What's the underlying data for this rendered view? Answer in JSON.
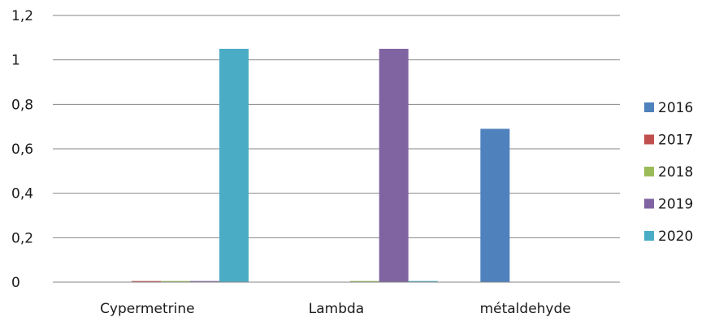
{
  "chart_data": {
    "type": "bar",
    "title": "",
    "xlabel": "",
    "ylabel": "",
    "categories": [
      "Cypermetrine",
      "Lambda",
      "métaldehyde"
    ],
    "series": [
      {
        "name": "2016",
        "color": "#4F81BD",
        "values": [
          0,
          0,
          0.69
        ]
      },
      {
        "name": "2017",
        "color": "#C0504D",
        "values": [
          0.005,
          0,
          0
        ]
      },
      {
        "name": "2018",
        "color": "#9BBB59",
        "values": [
          0.005,
          0.005,
          0
        ]
      },
      {
        "name": "2019",
        "color": "#8064A2",
        "values": [
          0.005,
          1.05,
          0
        ]
      },
      {
        "name": "2020",
        "color": "#4BACC6",
        "values": [
          1.05,
          0.005,
          0
        ]
      }
    ],
    "ylim": [
      0,
      1.2
    ],
    "yticks": [
      0,
      0.2,
      0.4,
      0.6,
      0.8,
      1,
      1.2
    ],
    "ytick_labels": [
      "0",
      "0,2",
      "0,4",
      "0,6",
      "0,8",
      "1",
      "1,2"
    ],
    "grid": true,
    "legend_position": "right"
  }
}
